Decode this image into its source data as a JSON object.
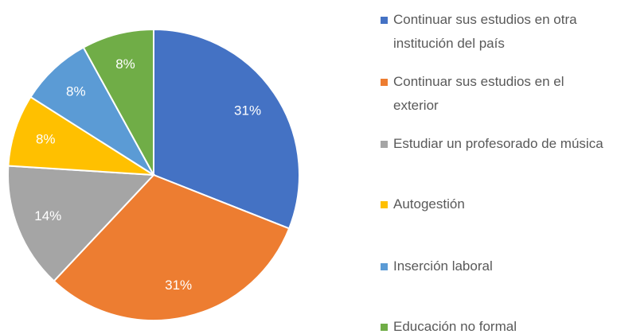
{
  "chart_data": {
    "type": "pie",
    "categories": [
      "Continuar sus estudios en otra institución del país",
      "Continuar sus estudios en el exterior",
      "Estudiar un profesorado de música",
      "Autogestión",
      "Inserción laboral",
      "Educación no formal"
    ],
    "values": [
      31,
      31,
      14,
      8,
      8,
      8
    ],
    "value_labels": [
      "31%",
      "31%",
      "14%",
      "8%",
      "8%",
      "8%"
    ],
    "colors": [
      "#4472c4",
      "#ed7d31",
      "#a5a5a5",
      "#ffc000",
      "#5b9bd5",
      "#70ad47"
    ]
  }
}
